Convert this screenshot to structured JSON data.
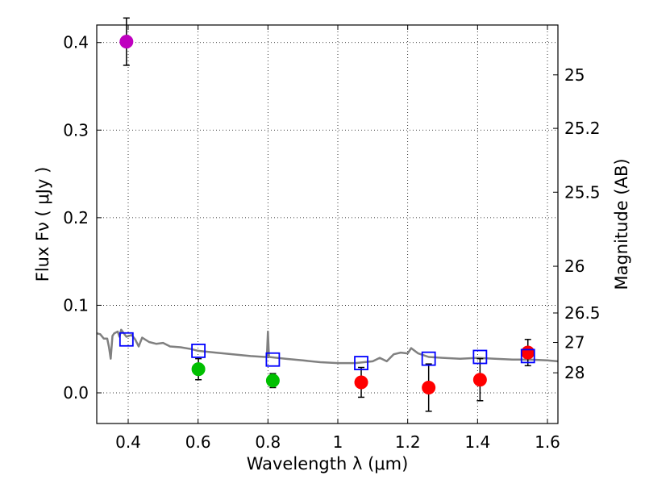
{
  "chart_data": {
    "type": "scatter",
    "title": "",
    "xlabel": "Wavelength  λ (μm)",
    "ylabel": "Flux  Fν  ( μJy )",
    "ylabel2": "Magnitude (AB)",
    "xlim": [
      0.31,
      1.63
    ],
    "ylim": [
      -0.035,
      0.42
    ],
    "grid": true,
    "x_ticks": [
      0.4,
      0.6,
      0.8,
      1.0,
      1.2,
      1.4,
      1.6
    ],
    "x_tick_labels": [
      "0.4",
      "0.6",
      "0.8",
      "1",
      "1.2",
      "1.4",
      "1.6"
    ],
    "y_ticks": [
      0.0,
      0.1,
      0.2,
      0.3,
      0.4
    ],
    "y_tick_labels": [
      "0.0",
      "0.1",
      "0.2",
      "0.3",
      "0.4"
    ],
    "mag_ticks": [
      25,
      25.2,
      25.5,
      26,
      26.5,
      27,
      28
    ],
    "mag_tick_labels": [
      "25",
      "25.2",
      "25.5",
      "26",
      "26.5",
      "27",
      "28"
    ],
    "series": [
      {
        "name": "violet detection",
        "color": "#bf00bf",
        "points": [
          {
            "x": 0.395,
            "y": 0.401,
            "err": 0.027
          }
        ]
      },
      {
        "name": "green detections",
        "color": "#00bf00",
        "points": [
          {
            "x": 0.601,
            "y": 0.027,
            "err": 0.012
          },
          {
            "x": 0.814,
            "y": 0.014,
            "err": 0.008
          }
        ]
      },
      {
        "name": "red detections",
        "color": "#ff0000",
        "points": [
          {
            "x": 1.067,
            "y": 0.012,
            "err": 0.017
          },
          {
            "x": 1.26,
            "y": 0.006,
            "err": 0.027
          },
          {
            "x": 1.407,
            "y": 0.015,
            "err": 0.024
          },
          {
            "x": 1.544,
            "y": 0.046,
            "err": 0.015
          }
        ]
      },
      {
        "name": "model fluxes",
        "color": "#0000ff",
        "marker": "open-square",
        "points": [
          {
            "x": 0.395,
            "y": 0.061
          },
          {
            "x": 0.601,
            "y": 0.048
          },
          {
            "x": 0.814,
            "y": 0.038
          },
          {
            "x": 1.067,
            "y": 0.034
          },
          {
            "x": 1.26,
            "y": 0.039
          },
          {
            "x": 1.407,
            "y": 0.041
          },
          {
            "x": 1.544,
            "y": 0.042
          }
        ]
      },
      {
        "name": "template spectrum",
        "color": "#808080",
        "type": "line",
        "points": [
          {
            "x": 0.31,
            "y": 0.068
          },
          {
            "x": 0.32,
            "y": 0.067
          },
          {
            "x": 0.33,
            "y": 0.062
          },
          {
            "x": 0.34,
            "y": 0.062
          },
          {
            "x": 0.345,
            "y": 0.052
          },
          {
            "x": 0.35,
            "y": 0.039
          },
          {
            "x": 0.355,
            "y": 0.065
          },
          {
            "x": 0.36,
            "y": 0.068
          },
          {
            "x": 0.37,
            "y": 0.07
          },
          {
            "x": 0.375,
            "y": 0.064
          },
          {
            "x": 0.38,
            "y": 0.072
          },
          {
            "x": 0.395,
            "y": 0.064
          },
          {
            "x": 0.41,
            "y": 0.066
          },
          {
            "x": 0.42,
            "y": 0.061
          },
          {
            "x": 0.43,
            "y": 0.053
          },
          {
            "x": 0.44,
            "y": 0.063
          },
          {
            "x": 0.46,
            "y": 0.058
          },
          {
            "x": 0.48,
            "y": 0.056
          },
          {
            "x": 0.5,
            "y": 0.057
          },
          {
            "x": 0.52,
            "y": 0.053
          },
          {
            "x": 0.55,
            "y": 0.052
          },
          {
            "x": 0.58,
            "y": 0.05
          },
          {
            "x": 0.6,
            "y": 0.048
          },
          {
            "x": 0.65,
            "y": 0.046
          },
          {
            "x": 0.7,
            "y": 0.044
          },
          {
            "x": 0.75,
            "y": 0.042
          },
          {
            "x": 0.79,
            "y": 0.041
          },
          {
            "x": 0.797,
            "y": 0.041
          },
          {
            "x": 0.8,
            "y": 0.07
          },
          {
            "x": 0.803,
            "y": 0.041
          },
          {
            "x": 0.85,
            "y": 0.039
          },
          {
            "x": 0.9,
            "y": 0.037
          },
          {
            "x": 0.95,
            "y": 0.035
          },
          {
            "x": 1.0,
            "y": 0.034
          },
          {
            "x": 1.05,
            "y": 0.034
          },
          {
            "x": 1.1,
            "y": 0.036
          },
          {
            "x": 1.12,
            "y": 0.04
          },
          {
            "x": 1.14,
            "y": 0.036
          },
          {
            "x": 1.16,
            "y": 0.044
          },
          {
            "x": 1.18,
            "y": 0.046
          },
          {
            "x": 1.2,
            "y": 0.045
          },
          {
            "x": 1.21,
            "y": 0.051
          },
          {
            "x": 1.23,
            "y": 0.045
          },
          {
            "x": 1.26,
            "y": 0.041
          },
          {
            "x": 1.3,
            "y": 0.04
          },
          {
            "x": 1.35,
            "y": 0.039
          },
          {
            "x": 1.4,
            "y": 0.04
          },
          {
            "x": 1.45,
            "y": 0.039
          },
          {
            "x": 1.5,
            "y": 0.038
          },
          {
            "x": 1.55,
            "y": 0.038
          },
          {
            "x": 1.6,
            "y": 0.037
          },
          {
            "x": 1.63,
            "y": 0.036
          }
        ]
      }
    ]
  }
}
